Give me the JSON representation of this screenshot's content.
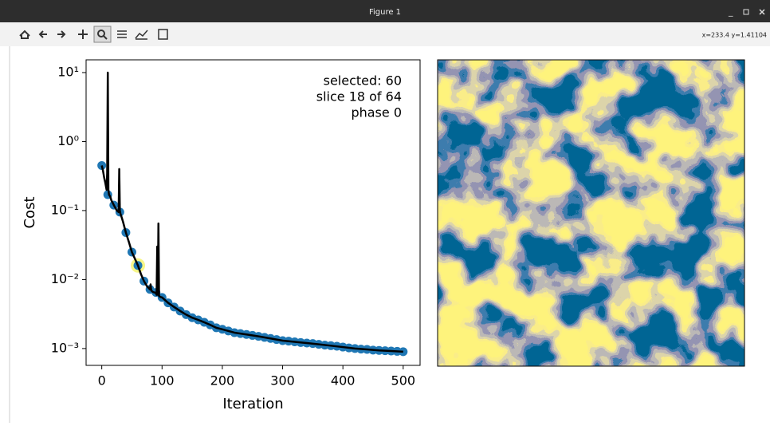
{
  "window": {
    "title": "Figure 1",
    "coordinates": "x=233.4 y=1.41104"
  },
  "chart_data": {
    "type": "line",
    "yscale": "log",
    "xlabel": "Iteration",
    "ylabel": "Cost",
    "annotations": [
      "selected: 60",
      "slice 18 of 64",
      "phase 0"
    ],
    "xlim": [
      -26,
      528
    ],
    "ylim": [
      0.00057,
      15.3
    ],
    "xticks": [
      0,
      100,
      200,
      300,
      400,
      500
    ],
    "yticks": [
      {
        "value": 0.001,
        "label": "10⁻³"
      },
      {
        "value": 0.01,
        "label": "10⁻²"
      },
      {
        "value": 0.1,
        "label": "10⁻¹"
      },
      {
        "value": 1,
        "label": "10⁰"
      },
      {
        "value": 10,
        "label": "10¹"
      }
    ],
    "series": [
      {
        "type": "scatter",
        "color": "#1f77b4",
        "x": [
          0,
          10,
          20,
          30,
          40,
          50,
          60,
          70,
          80,
          90,
          100,
          110,
          120,
          130,
          140,
          150,
          160,
          170,
          180,
          190,
          200,
          210,
          220,
          230,
          240,
          250,
          260,
          270,
          280,
          290,
          300,
          310,
          320,
          330,
          340,
          350,
          360,
          370,
          380,
          390,
          400,
          410,
          420,
          430,
          440,
          450,
          460,
          470,
          480,
          490,
          500
        ],
        "values": [
          0.45,
          0.17,
          0.12,
          0.095,
          0.048,
          0.025,
          0.016,
          0.0095,
          0.0072,
          0.0065,
          0.0055,
          0.0046,
          0.004,
          0.0035,
          0.0031,
          0.0028,
          0.0026,
          0.0024,
          0.0022,
          0.002,
          0.0019,
          0.0018,
          0.0017,
          0.00165,
          0.0016,
          0.00155,
          0.0015,
          0.00145,
          0.0014,
          0.00135,
          0.0013,
          0.00128,
          0.00125,
          0.00122,
          0.0012,
          0.00118,
          0.00115,
          0.00112,
          0.0011,
          0.00108,
          0.00105,
          0.00102,
          0.001,
          0.00098,
          0.00097,
          0.00095,
          0.00094,
          0.00093,
          0.00092,
          0.00091,
          0.0009
        ]
      },
      {
        "type": "line",
        "color": "#000000",
        "x": [
          0,
          2,
          4,
          6,
          8,
          9,
          10,
          11,
          12,
          14,
          16,
          18,
          20,
          25,
          28,
          29,
          30,
          31,
          32,
          35,
          40,
          45,
          50,
          55,
          60,
          65,
          70,
          75,
          80,
          81,
          82,
          83,
          85,
          90,
          91,
          92,
          93,
          94,
          95,
          96,
          97,
          100,
          110,
          120,
          130,
          140,
          150,
          160,
          170,
          180,
          190,
          200,
          220,
          240,
          260,
          280,
          300,
          320,
          340,
          360,
          380,
          400,
          420,
          440,
          460,
          480,
          500
        ],
        "values": [
          0.45,
          0.38,
          0.3,
          0.25,
          0.2,
          0.35,
          10,
          0.2,
          0.17,
          0.16,
          0.14,
          0.13,
          0.12,
          0.1,
          0.095,
          0.4,
          0.1,
          0.09,
          0.085,
          0.07,
          0.048,
          0.035,
          0.025,
          0.02,
          0.016,
          0.012,
          0.0095,
          0.008,
          0.0072,
          0.0085,
          0.007,
          0.0068,
          0.0066,
          0.0064,
          0.006,
          0.03,
          0.006,
          0.065,
          0.0058,
          0.0057,
          0.0056,
          0.0055,
          0.0046,
          0.004,
          0.0035,
          0.0031,
          0.0028,
          0.0026,
          0.0024,
          0.0022,
          0.002,
          0.0019,
          0.0017,
          0.0016,
          0.0015,
          0.0014,
          0.0013,
          0.00125,
          0.0012,
          0.00115,
          0.0011,
          0.00105,
          0.001,
          0.00097,
          0.00094,
          0.00092,
          0.0009
        ]
      }
    ],
    "highlight": {
      "x": 60,
      "y": 0.016,
      "color": "#f4f46a"
    }
  }
}
